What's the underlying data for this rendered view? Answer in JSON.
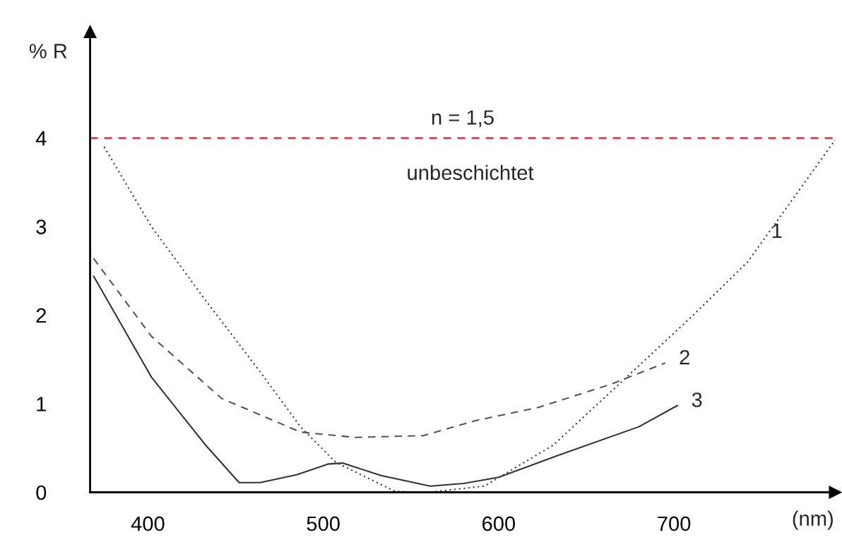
{
  "chart_data": {
    "type": "line",
    "xlabel": "(nm)",
    "ylabel": "% R",
    "xlim": [
      367,
      792
    ],
    "ylim": [
      0,
      5.2
    ],
    "xticks": [
      400,
      500,
      600,
      700
    ],
    "yticks": [
      0,
      1,
      2,
      3,
      4
    ],
    "grid": false,
    "legend": false,
    "series": [
      {
        "name": "1",
        "color": "#333333",
        "line_style": "dotted",
        "x": [
          375,
          402,
          432,
          464,
          487,
          507,
          541,
          560,
          592,
          631,
          673,
          711,
          742,
          792
        ],
        "values": [
          3.9,
          3.0,
          2.19,
          1.36,
          0.74,
          0.34,
          0.01,
          0.0,
          0.07,
          0.53,
          1.3,
          2.0,
          2.6,
          3.98
        ]
      },
      {
        "name": "2",
        "color": "#555555",
        "line_style": "dashed",
        "x": [
          369,
          402,
          442,
          487,
          518,
          557,
          587,
          623,
          664,
          695
        ],
        "values": [
          2.64,
          1.76,
          1.06,
          0.68,
          0.62,
          0.64,
          0.81,
          0.96,
          1.22,
          1.46
        ]
      },
      {
        "name": "3",
        "color": "#333333",
        "line_style": "solid",
        "x": [
          369,
          402,
          433,
          452,
          464,
          485,
          503,
          511,
          533,
          561,
          580,
          600,
          633,
          680,
          702
        ],
        "values": [
          2.44,
          1.3,
          0.53,
          0.11,
          0.11,
          0.2,
          0.32,
          0.33,
          0.19,
          0.07,
          0.1,
          0.17,
          0.41,
          0.74,
          0.98
        ]
      }
    ],
    "ref_lines": [
      {
        "axis": "y",
        "value": 4,
        "color": "#d62030",
        "line_style": "dashed"
      }
    ],
    "annotations": [
      "n = 1,5",
      "unbeschichtet"
    ]
  }
}
